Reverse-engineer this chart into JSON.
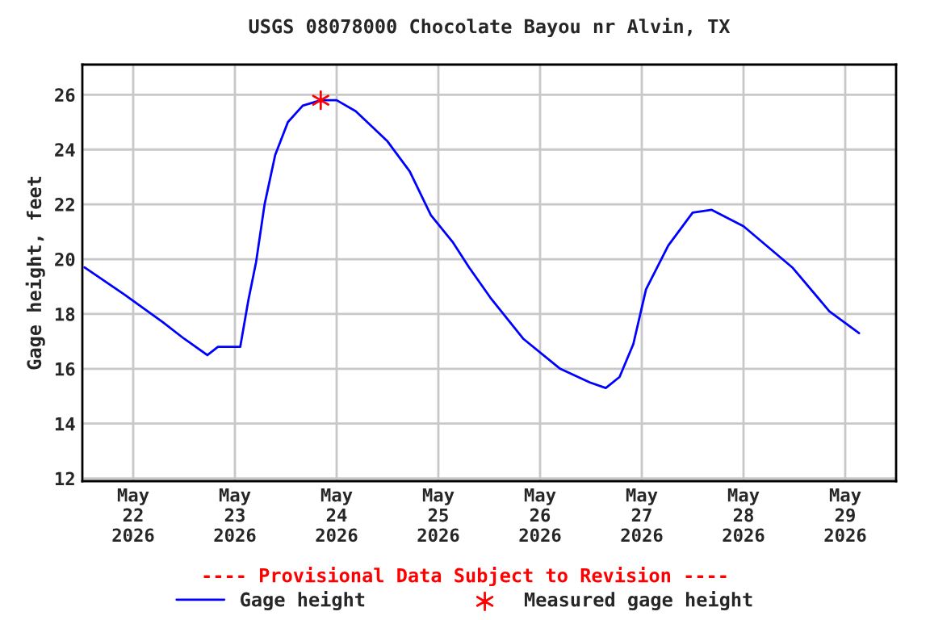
{
  "chart_data": {
    "type": "line",
    "title": "USGS 08078000 Chocolate Bayou nr Alvin, TX",
    "ylabel": "Gage height, feet",
    "annotations": [
      "---- Provisional Data Subject to Revision ----"
    ],
    "xlim": [
      "2026-05-21T12:00",
      "2026-05-29T12:00"
    ],
    "xticks": [
      {
        "value": "2026-05-22",
        "label": "May\n22\n2026"
      },
      {
        "value": "2026-05-23",
        "label": "May\n23\n2026"
      },
      {
        "value": "2026-05-24",
        "label": "May\n24\n2026"
      },
      {
        "value": "2026-05-25",
        "label": "May\n25\n2026"
      },
      {
        "value": "2026-05-26",
        "label": "May\n26\n2026"
      },
      {
        "value": "2026-05-27",
        "label": "May\n27\n2026"
      },
      {
        "value": "2026-05-28",
        "label": "May\n28\n2026"
      },
      {
        "value": "2026-05-29",
        "label": "May\n29\n2026"
      }
    ],
    "ylim": [
      11.9,
      27.1
    ],
    "yticks": [
      12,
      14,
      16,
      18,
      20,
      22,
      24,
      26
    ],
    "grid": true,
    "legend": "bottom",
    "series": [
      {
        "name": "Gage height",
        "color": "#0000ff",
        "marker": "none",
        "x": [
          "2026-05-21T12:30",
          "2026-05-21T22:00",
          "2026-05-22T07:00",
          "2026-05-22T12:00",
          "2026-05-22T17:30",
          "2026-05-22T20:00",
          "2026-05-23T01:15",
          "2026-05-23T03:10",
          "2026-05-23T05:00",
          "2026-05-23T07:00",
          "2026-05-23T09:30",
          "2026-05-23T12:30",
          "2026-05-23T16:00",
          "2026-05-23T20:15",
          "2026-05-24T00:00",
          "2026-05-24T04:30",
          "2026-05-24T12:00",
          "2026-05-24T17:15",
          "2026-05-24T22:15",
          "2026-05-25T03:30",
          "2026-05-25T07:15",
          "2026-05-25T12:15",
          "2026-05-25T20:00",
          "2026-05-26T04:45",
          "2026-05-26T11:45",
          "2026-05-26T15:30",
          "2026-05-26T18:45",
          "2026-05-26T22:00",
          "2026-05-27T01:00",
          "2026-05-27T06:15",
          "2026-05-27T12:00",
          "2026-05-27T16:30",
          "2026-05-28T00:00",
          "2026-05-28T11:30",
          "2026-05-28T20:15",
          "2026-05-29T03:15"
        ],
        "values": [
          19.7,
          18.7,
          17.7,
          17.1,
          16.5,
          16.8,
          16.8,
          18.5,
          19.9,
          22.0,
          23.8,
          25.0,
          25.6,
          25.8,
          25.8,
          25.4,
          24.3,
          23.2,
          21.6,
          20.6,
          19.7,
          18.6,
          17.1,
          16.0,
          15.5,
          15.3,
          15.7,
          16.9,
          18.9,
          20.5,
          21.7,
          21.8,
          21.2,
          19.7,
          18.1,
          17.3
        ]
      },
      {
        "name": "Measured gage height",
        "color": "#ff0000",
        "type": "scatter",
        "marker": "cross",
        "x": [
          "2026-05-23T20:15"
        ],
        "values": [
          25.8
        ]
      }
    ]
  }
}
